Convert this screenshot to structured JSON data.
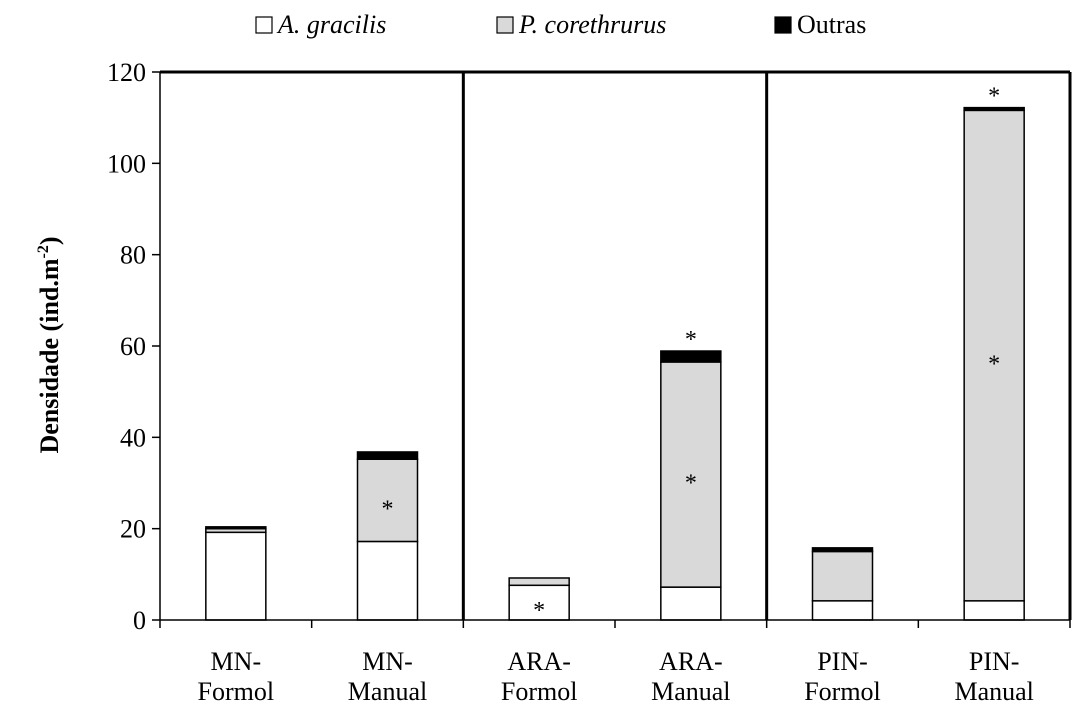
{
  "chart_data": {
    "type": "bar",
    "stacked": true,
    "categories": [
      [
        "MN-",
        "Formol"
      ],
      [
        "MN-",
        "Manual"
      ],
      [
        "ARA-",
        "Formol"
      ],
      [
        "ARA-",
        "Manual"
      ],
      [
        "PIN-",
        "Formol"
      ],
      [
        "PIN-",
        "Manual"
      ]
    ],
    "series": [
      {
        "name": "A. gracilis",
        "italic": true,
        "color": "#ffffff",
        "values": [
          19.2,
          17.2,
          7.6,
          7.2,
          4.2,
          4.2
        ]
      },
      {
        "name": "P. corethrurus",
        "italic": true,
        "color": "#d9d9d9",
        "values": [
          0.8,
          18.0,
          1.6,
          49.3,
          10.8,
          107.4
        ]
      },
      {
        "name": "Outras",
        "italic": false,
        "color": "#000000",
        "values": [
          0.4,
          1.6,
          0.0,
          2.4,
          0.8,
          0.6
        ]
      }
    ],
    "significance": [
      {
        "category": 1,
        "series": 1,
        "mark": "*"
      },
      {
        "category": 2,
        "series": 0,
        "mark": "*"
      },
      {
        "category": 3,
        "series": 1,
        "mark": "*"
      },
      {
        "category": 3,
        "series": "total",
        "mark": "*"
      },
      {
        "category": 5,
        "series": 1,
        "mark": "*"
      },
      {
        "category": 5,
        "series": "total",
        "mark": "*"
      }
    ],
    "ylabel": "Densidade (ind.m",
    "ylabel_superscript": "-2",
    "ylabel_suffix": ")",
    "ylim": [
      0,
      120
    ],
    "yticks": [
      0,
      20,
      40,
      60,
      80,
      100,
      120
    ],
    "group_dividers_after": [
      1,
      3
    ],
    "legend_position": "top",
    "grid": false
  }
}
